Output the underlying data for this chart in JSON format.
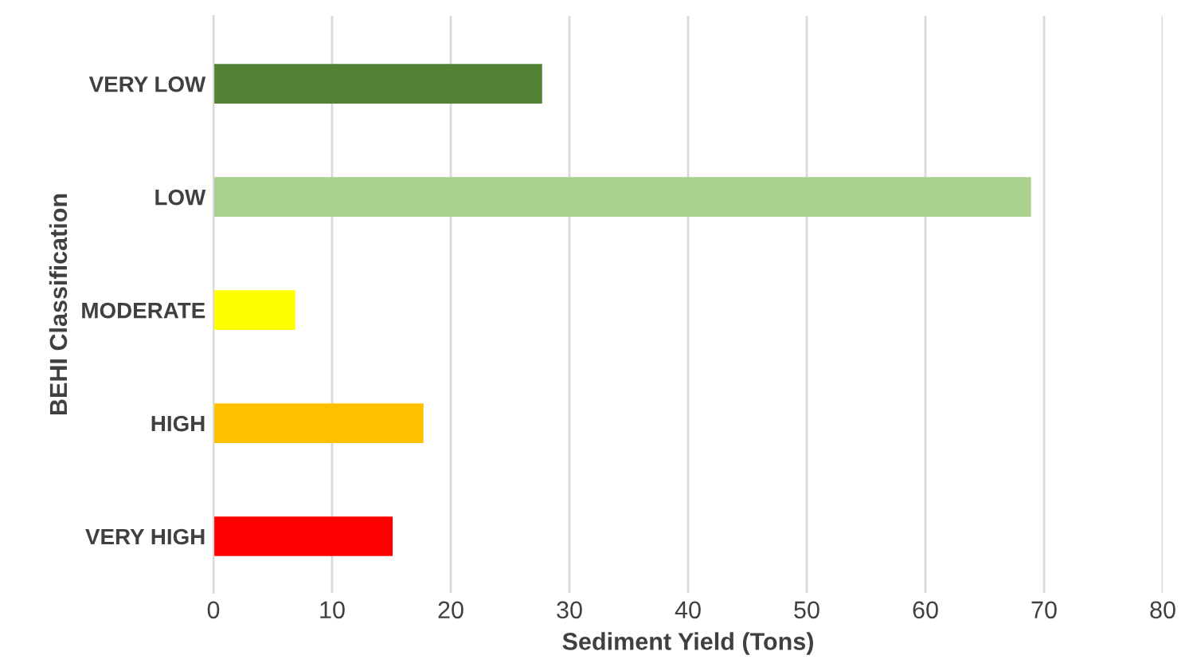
{
  "chart_data": {
    "type": "bar",
    "orientation": "horizontal",
    "xlabel": "Sediment Yield (Tons)",
    "ylabel": "BEHI Classification",
    "categories": [
      "VERY LOW",
      "LOW",
      "MODERATE",
      "HIGH",
      "VERY HIGH"
    ],
    "values": [
      27.7,
      68.9,
      6.9,
      17.7,
      15.1
    ],
    "colors": [
      "#548235",
      "#a9d18e",
      "#ffff00",
      "#ffc000",
      "#ff0000"
    ],
    "xlim": [
      0,
      80
    ],
    "xticks": [
      0,
      10,
      20,
      30,
      40,
      50,
      60,
      70,
      80
    ],
    "grid": "x"
  }
}
